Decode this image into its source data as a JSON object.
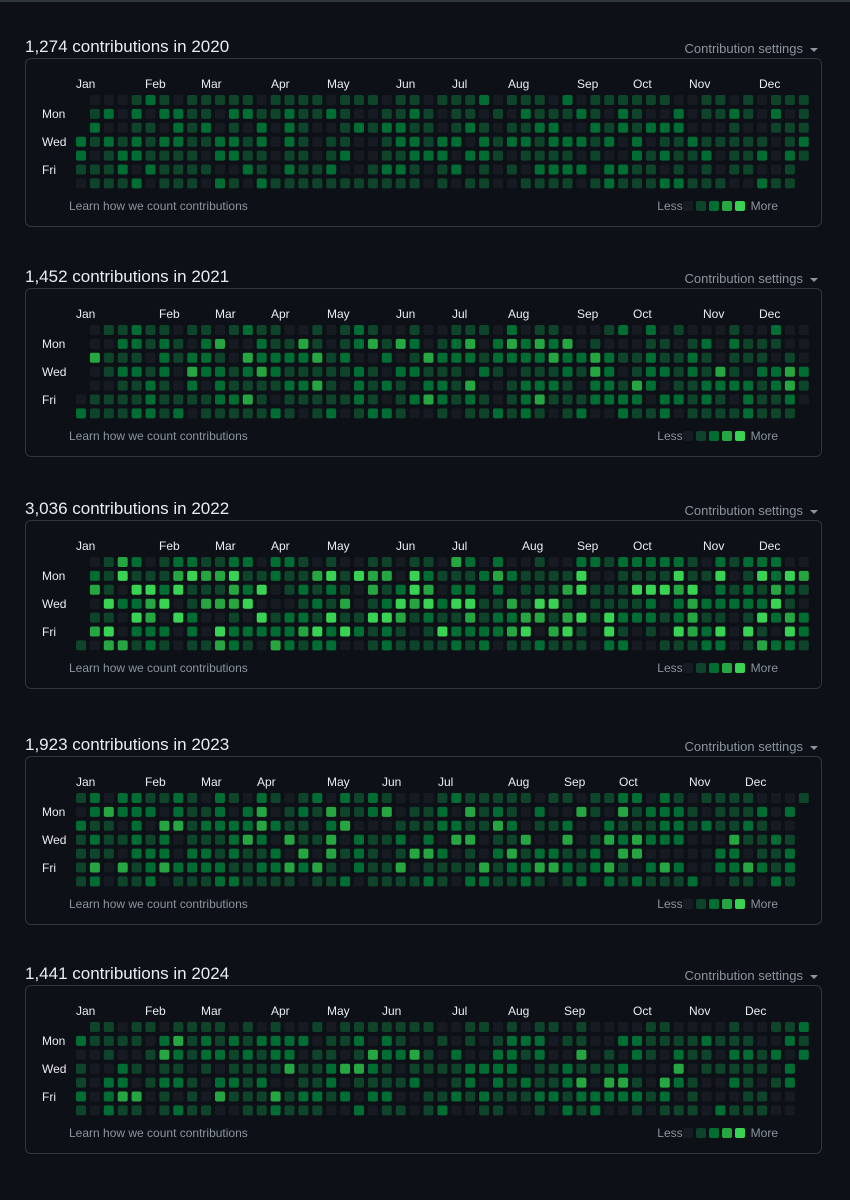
{
  "page": {
    "day_labels": [
      "Mon",
      "Wed",
      "Fri"
    ],
    "settings_label": "Contribution settings",
    "learn_label": "Learn how we count contributions",
    "legend_less": "Less",
    "legend_more": "More"
  },
  "theme": {
    "background": "#0d1117",
    "border": "#30363d",
    "text": "#e6edf3",
    "muted": "#8b949e",
    "levels": [
      "#161b22",
      "#0e4429",
      "#006d32",
      "#26a641",
      "#39d353"
    ]
  },
  "sections": [
    {
      "title": "1,274 contributions in 2020",
      "year": 2020,
      "months": [
        "Jan",
        "Feb",
        "Mar",
        "Apr",
        "May",
        "Jun",
        "Jul",
        "Aug",
        "Sep",
        "Oct",
        "Nov",
        "Dec"
      ]
    },
    {
      "title": "1,452 contributions in 2021",
      "year": 2021,
      "months": [
        "Jan",
        "Feb",
        "Mar",
        "Apr",
        "May",
        "Jun",
        "Jul",
        "Aug",
        "Sep",
        "Oct",
        "Nov",
        "Dec"
      ]
    },
    {
      "title": "3,036 contributions in 2022",
      "year": 2022,
      "months": [
        "Jan",
        "Feb",
        "Mar",
        "Apr",
        "May",
        "Jun",
        "Jul",
        "Aug",
        "Sep",
        "Oct",
        "Nov",
        "Dec"
      ]
    },
    {
      "title": "1,923 contributions in 2023",
      "year": 2023,
      "months": [
        "Jan",
        "Feb",
        "Mar",
        "Apr",
        "May",
        "Jun",
        "Jul",
        "Aug",
        "Sep",
        "Oct",
        "Nov",
        "Dec"
      ]
    },
    {
      "title": "1,441 contributions in 2024",
      "year": 2024,
      "months": [
        "Jan",
        "Feb",
        "Mar",
        "Apr",
        "May",
        "Jun",
        "Jul",
        "Aug",
        "Sep",
        "Oct",
        "Nov",
        "Dec"
      ]
    }
  ]
}
